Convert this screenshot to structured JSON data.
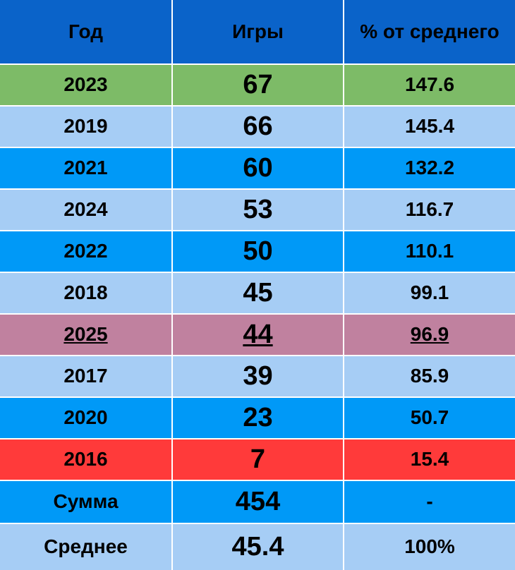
{
  "table": {
    "header": [
      "Год",
      "Игры",
      "% от среднего"
    ],
    "rows": [
      [
        2023,
        67,
        147.6
      ],
      [
        2019,
        66,
        145.4
      ],
      [
        2021,
        60,
        132.2
      ],
      [
        2024,
        53,
        116.7
      ],
      [
        2022,
        50,
        110.1
      ],
      [
        2018,
        45,
        99.1
      ],
      [
        2025,
        44,
        96.9
      ],
      [
        2017,
        39,
        85.9
      ],
      [
        2020,
        23,
        50.7
      ],
      [
        2016,
        7,
        15.4
      ],
      [
        "Сумма",
        454,
        "-"
      ],
      [
        "Среднее",
        45.4,
        "100%"
      ]
    ]
  }
}
